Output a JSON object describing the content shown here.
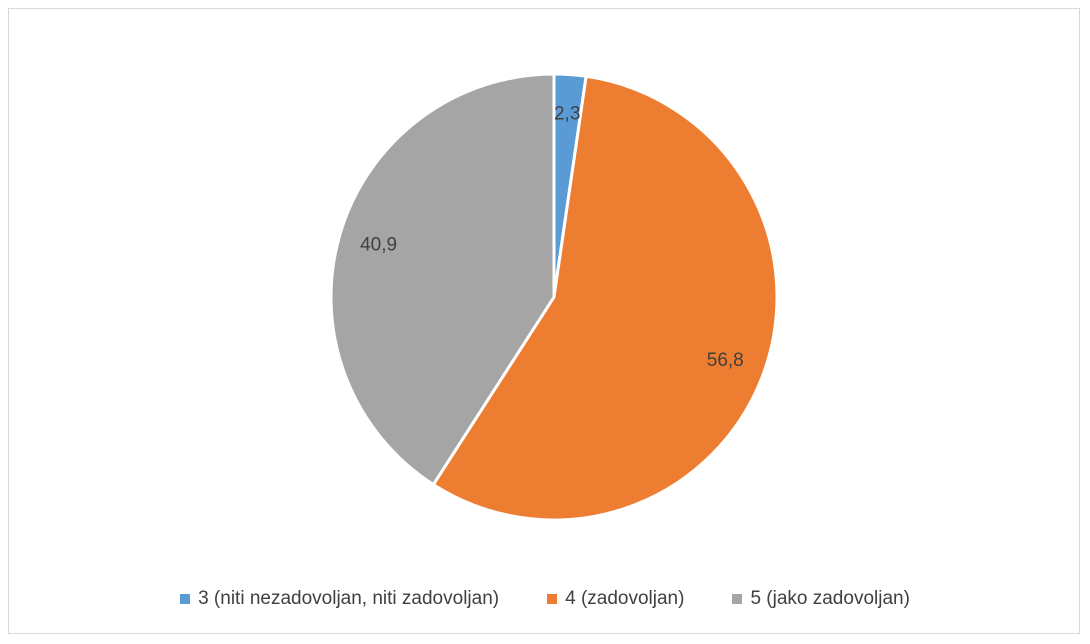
{
  "chart_data": {
    "type": "pie",
    "title": "",
    "slices": [
      {
        "label": "3 (niti nezadovoljan, niti zadovoljan)",
        "value": 2.3,
        "value_label": "2,3",
        "color": "#5b9bd5"
      },
      {
        "label": "4 (zadovoljan)",
        "value": 56.8,
        "value_label": "56,8",
        "color": "#ed7d31"
      },
      {
        "label": "5 (jako zadovoljan)",
        "value": 40.9,
        "value_label": "40,9",
        "color": "#a5a5a5"
      }
    ],
    "start_angle_deg": 0,
    "direction": "clockwise",
    "legend_position": "bottom",
    "data_labels": true
  }
}
